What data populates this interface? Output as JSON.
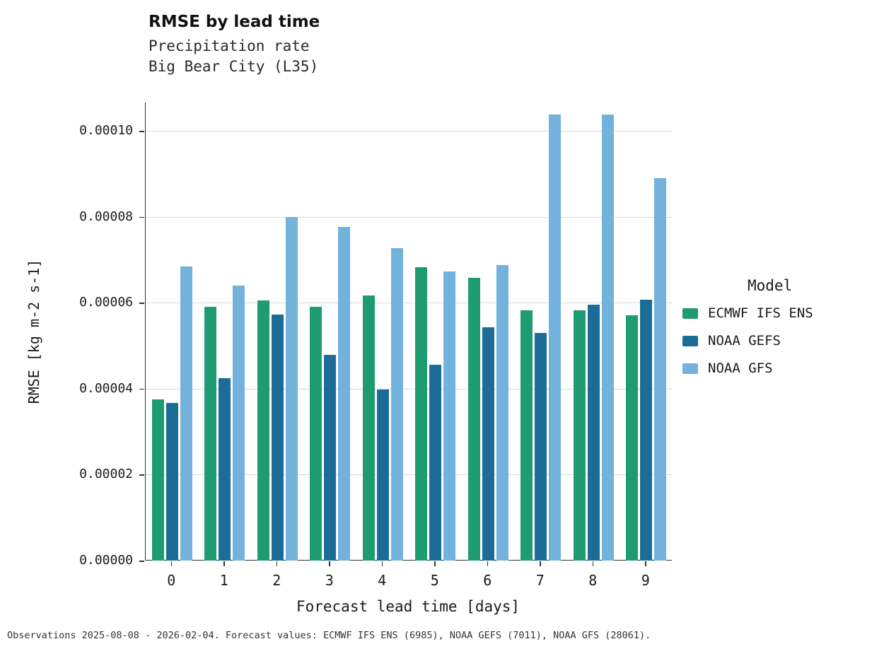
{
  "header": {
    "title": "RMSE by lead time",
    "subtitle1": "Precipitation rate",
    "subtitle2": "Big Bear City (L35)"
  },
  "axes": {
    "xlabel": "Forecast lead time [days]",
    "ylabel": "RMSE [kg m-2 s-1]"
  },
  "legend": {
    "title": "Model"
  },
  "footer": {
    "text": "Observations 2025-08-08 - 2026-02-04. Forecast values: ECMWF IFS ENS (6985), NOAA GEFS (7011), NOAA GFS (28061)."
  },
  "chart_data": {
    "type": "bar",
    "title": "RMSE by lead time",
    "subtitle": [
      "Precipitation rate",
      "Big Bear City (L35)"
    ],
    "xlabel": "Forecast lead time [days]",
    "ylabel": "RMSE [kg m-2 s-1]",
    "categories": [
      "0",
      "1",
      "2",
      "3",
      "4",
      "5",
      "6",
      "7",
      "8",
      "9"
    ],
    "series": [
      {
        "name": "ECMWF IFS ENS",
        "color": "#1e9b70",
        "values": [
          3.75e-05,
          5.9e-05,
          6.05e-05,
          5.91e-05,
          6.17e-05,
          6.83e-05,
          6.58e-05,
          5.82e-05,
          5.83e-05,
          5.7e-05
        ]
      },
      {
        "name": "NOAA GEFS",
        "color": "#1b6d97",
        "values": [
          3.66e-05,
          4.25e-05,
          5.73e-05,
          4.78e-05,
          3.98e-05,
          4.56e-05,
          5.42e-05,
          5.29e-05,
          5.95e-05,
          6.07e-05
        ]
      },
      {
        "name": "NOAA GFS",
        "color": "#72b2dd",
        "values": [
          6.85e-05,
          6.39e-05,
          8e-05,
          7.77e-05,
          7.27e-05,
          6.72e-05,
          6.88e-05,
          0.0001038,
          0.0001038,
          8.9e-05
        ]
      }
    ],
    "ylim": [
      0,
      0.000108
    ],
    "yticks": [
      0,
      2e-05,
      4e-05,
      6e-05,
      8e-05,
      0.0001
    ],
    "ytick_labels": [
      "0.00000",
      "0.00002",
      "0.00004",
      "0.00006",
      "0.00008",
      "0.00010"
    ],
    "grid": true,
    "gridline_color": "#d9d9d9",
    "legend_position": "right"
  }
}
